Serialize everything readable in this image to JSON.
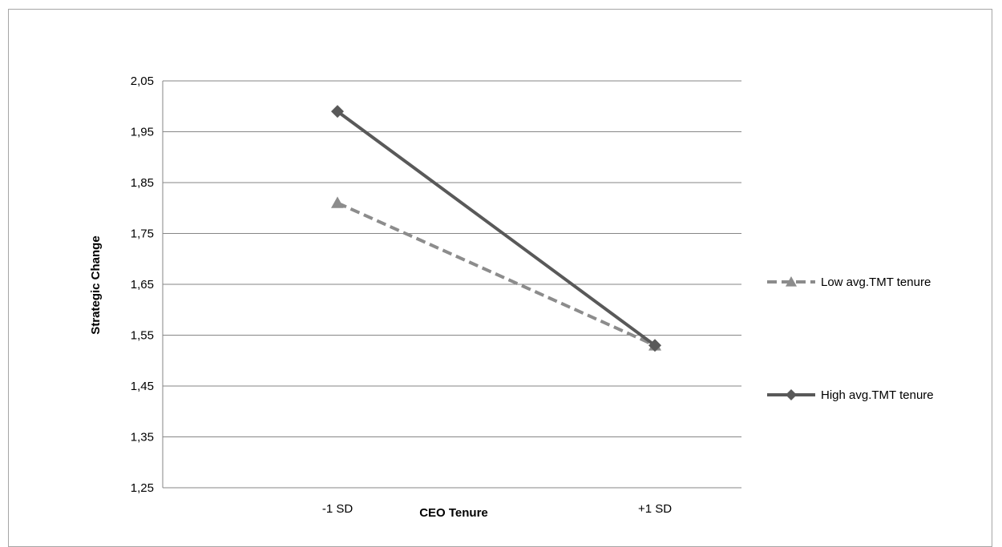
{
  "chart_data": {
    "type": "line",
    "title": "",
    "xlabel": "CEO Tenure",
    "ylabel": "Strategic Change",
    "categories": [
      "-1 SD",
      "+1 SD"
    ],
    "y_ticks": [
      "1,25",
      "1,35",
      "1,45",
      "1,55",
      "1,65",
      "1,75",
      "1,85",
      "1,95",
      "2,05"
    ],
    "ylim": [
      1.25,
      2.05
    ],
    "grid": true,
    "legend_position": "right",
    "series": [
      {
        "name": "Low avg.TMT tenure",
        "values": [
          1.81,
          1.53
        ],
        "color": "#8c8c8c",
        "line_style": "dashed",
        "marker": "triangle"
      },
      {
        "name": "High avg.TMT tenure",
        "values": [
          1.99,
          1.53
        ],
        "color": "#595959",
        "line_style": "solid",
        "marker": "diamond"
      }
    ]
  }
}
